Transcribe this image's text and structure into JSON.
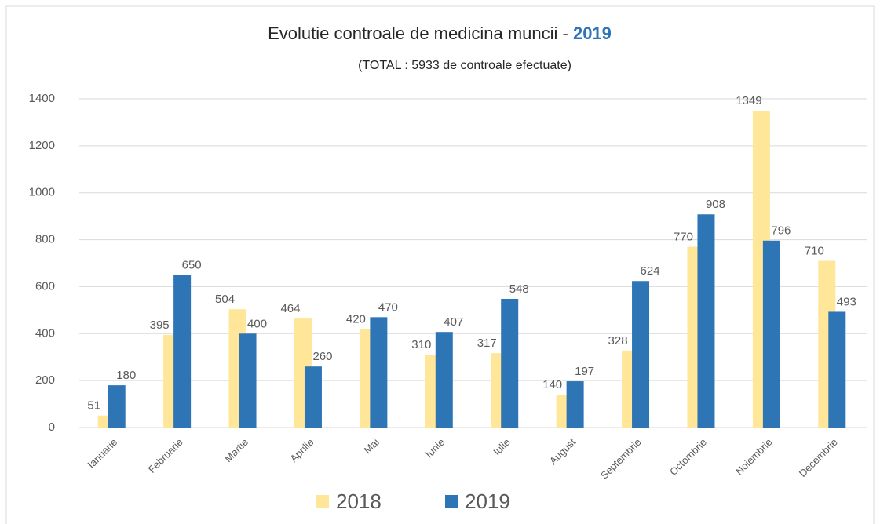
{
  "chart_data": {
    "type": "bar",
    "title": [
      "Evolutie controale de medicina muncii - ",
      "2019"
    ],
    "subtitle": "(TOTAL :  5933 de controale efectuate)",
    "categories": [
      "Ianuarie",
      "Februarie",
      "Martie",
      "Aprilie",
      "Mai",
      "Iunie",
      "Iulie",
      "August",
      "Septembrie",
      "Octombrie",
      "Noiembrie",
      "Decembrie"
    ],
    "series": [
      {
        "name": "2018",
        "color": "#ffe699",
        "values": [
          51,
          395,
          504,
          464,
          420,
          310,
          317,
          140,
          328,
          770,
          1349,
          710
        ]
      },
      {
        "name": "2019",
        "color": "#2e75b6",
        "values": [
          180,
          650,
          400,
          260,
          470,
          407,
          548,
          197,
          624,
          908,
          796,
          493
        ]
      }
    ],
    "ylim": [
      0,
      1400
    ],
    "yticks": [
      0,
      200,
      400,
      600,
      800,
      1000,
      1200,
      1400
    ],
    "grid": true,
    "legend": "bottom"
  }
}
